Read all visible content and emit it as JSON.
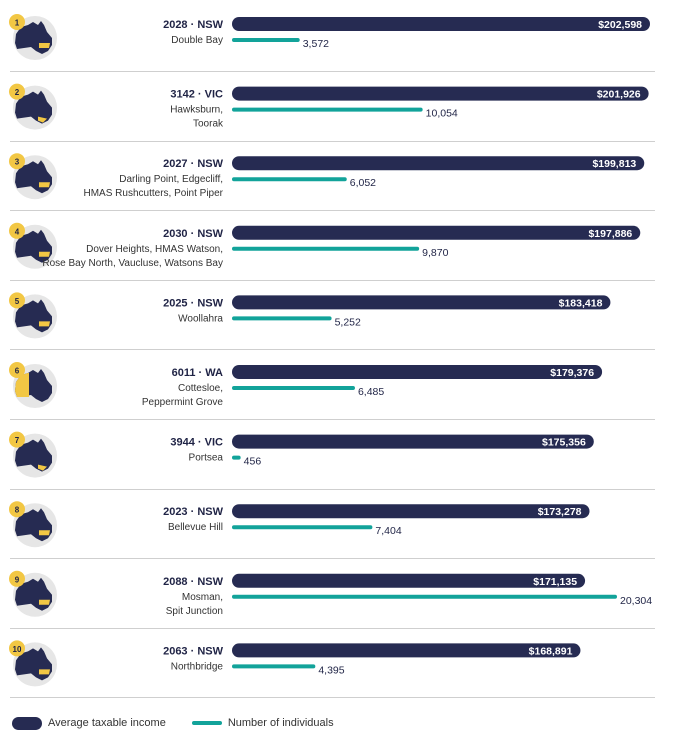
{
  "colors": {
    "income_bar": "#262b52",
    "count_bar": "#12a39a",
    "badge": "#f2c744",
    "map_bg": "#e6e6e6",
    "map_fill": "#262b52",
    "divider": "#cfcfcf"
  },
  "chart_data": {
    "type": "bar",
    "orientation": "horizontal",
    "series": [
      {
        "name": "Average taxable income",
        "values": [
          202598,
          201926,
          199813,
          197886,
          183418,
          179376,
          175356,
          173278,
          171135,
          168891
        ],
        "labels": [
          "$202,598",
          "$201,926",
          "$199,813",
          "$197,886",
          "$183,418",
          "$179,376",
          "$175,356",
          "$173,278",
          "$171,135",
          "$168,891"
        ]
      },
      {
        "name": "Number of individuals",
        "values": [
          3572,
          10054,
          6052,
          9870,
          5252,
          6485,
          456,
          7404,
          20304,
          4395
        ],
        "labels": [
          "3,572",
          "10,054",
          "6,052",
          "9,870",
          "5,252",
          "6,485",
          "456",
          "7,404",
          "20,304",
          "4,395"
        ]
      }
    ],
    "rows": [
      {
        "rank": "1",
        "state_icon": "australia-map-nsw-highlight-icon",
        "postcode": "2028 · NSW",
        "suburbs": [
          "Double Bay"
        ]
      },
      {
        "rank": "2",
        "state_icon": "australia-map-vic-highlight-icon",
        "postcode": "3142 · VIC",
        "suburbs": [
          "Hawksburn,",
          "Toorak"
        ]
      },
      {
        "rank": "3",
        "state_icon": "australia-map-nsw-highlight-icon",
        "postcode": "2027 · NSW",
        "suburbs": [
          "Darling Point, Edgecliff,",
          "HMAS Rushcutters, Point Piper"
        ]
      },
      {
        "rank": "4",
        "state_icon": "australia-map-nsw-highlight-icon",
        "postcode": "2030 · NSW",
        "suburbs": [
          "Dover Heights, HMAS Watson,",
          "Rose Bay North, Vaucluse, Watsons Bay"
        ]
      },
      {
        "rank": "5",
        "state_icon": "australia-map-nsw-highlight-icon",
        "postcode": "2025 · NSW",
        "suburbs": [
          "Woollahra"
        ]
      },
      {
        "rank": "6",
        "state_icon": "australia-map-wa-highlight-icon",
        "postcode": "6011 · WA",
        "suburbs": [
          "Cottesloe,",
          "Peppermint Grove"
        ]
      },
      {
        "rank": "7",
        "state_icon": "australia-map-vic-highlight-icon",
        "postcode": "3944 · VIC",
        "suburbs": [
          "Portsea"
        ]
      },
      {
        "rank": "8",
        "state_icon": "australia-map-nsw-highlight-icon",
        "postcode": "2023 · NSW",
        "suburbs": [
          "Bellevue Hill"
        ]
      },
      {
        "rank": "9",
        "state_icon": "australia-map-nsw-highlight-icon",
        "postcode": "2088 · NSW",
        "suburbs": [
          "Mosman,",
          "Spit Junction"
        ]
      },
      {
        "rank": "10",
        "state_icon": "australia-map-nsw-highlight-icon",
        "postcode": "2063 · NSW",
        "suburbs": [
          "Northbridge"
        ]
      }
    ]
  },
  "legend": {
    "income_label": "Average taxable income",
    "count_label": "Number of individuals"
  }
}
